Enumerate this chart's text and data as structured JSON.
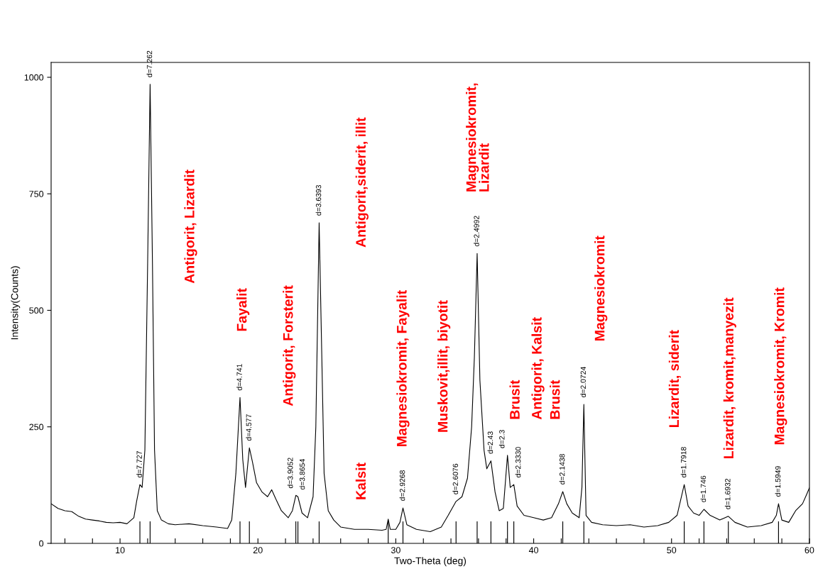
{
  "chart_data": {
    "type": "line",
    "xlabel": "Two-Theta (deg)",
    "ylabel": "Intensity(Counts)",
    "xlim": [
      5,
      60
    ],
    "ylim": [
      0,
      1032
    ],
    "xticks": [
      {
        "value": 6,
        "label": null
      },
      {
        "value": 8,
        "label": null
      },
      10,
      {
        "value": 12,
        "label": null
      },
      {
        "value": 14,
        "label": null
      },
      {
        "value": 16,
        "label": null
      },
      {
        "value": 18,
        "label": null
      },
      20,
      {
        "value": 22,
        "label": null
      },
      {
        "value": 24,
        "label": null
      },
      {
        "value": 26,
        "label": null
      },
      {
        "value": 28,
        "label": null
      },
      30,
      {
        "value": 32,
        "label": null
      },
      {
        "value": 34,
        "label": null
      },
      {
        "value": 36,
        "label": null
      },
      {
        "value": 38,
        "label": null
      },
      40,
      {
        "value": 42,
        "label": null
      },
      {
        "value": 44,
        "label": null
      },
      {
        "value": 46,
        "label": null
      },
      {
        "value": 48,
        "label": null
      },
      50,
      {
        "value": 52,
        "label": null
      },
      {
        "value": 54,
        "label": null
      },
      {
        "value": 56,
        "label": null
      },
      {
        "value": 58,
        "label": null
      },
      60
    ],
    "yticks": [
      0,
      250,
      500,
      750,
      1000
    ],
    "grid": false,
    "series": [
      {
        "color": "#000000",
        "x": [
          5.0,
          5.5,
          6.0,
          6.5,
          7.0,
          7.5,
          8.0,
          8.5,
          9.0,
          9.5,
          10.0,
          10.5,
          11.0,
          11.2,
          11.44,
          11.6,
          11.8,
          12.0,
          12.18,
          12.35,
          12.5,
          12.7,
          13.0,
          13.5,
          14.0,
          15.0,
          16.0,
          17.0,
          17.8,
          18.1,
          18.4,
          18.7,
          18.9,
          19.1,
          19.38,
          19.6,
          19.9,
          20.3,
          20.7,
          21.0,
          21.3,
          21.7,
          22.2,
          22.5,
          22.75,
          22.9,
          23.2,
          23.6,
          24.0,
          24.2,
          24.44,
          24.6,
          24.8,
          25.1,
          25.5,
          26.0,
          27.0,
          28.0,
          29.0,
          29.3,
          29.45,
          29.6,
          30.0,
          30.3,
          30.52,
          30.8,
          31.5,
          32.5,
          33.3,
          33.8,
          34.37,
          34.8,
          35.2,
          35.5,
          35.7,
          35.9,
          36.1,
          36.4,
          36.6,
          36.9,
          37.2,
          37.5,
          37.8,
          38.1,
          38.3,
          38.56,
          38.8,
          39.3,
          40.0,
          40.7,
          41.3,
          41.8,
          42.11,
          42.4,
          42.8,
          43.3,
          43.5,
          43.64,
          43.8,
          44.2,
          45.0,
          46.0,
          47.0,
          48.0,
          49.0,
          49.8,
          50.4,
          50.92,
          51.2,
          51.6,
          52.0,
          52.35,
          52.8,
          53.5,
          54.12,
          54.6,
          55.5,
          56.5,
          57.3,
          57.6,
          57.76,
          58.0,
          58.5,
          59.0,
          59.5,
          59.8,
          60.0
        ],
        "values": [
          85,
          75,
          70,
          68,
          58,
          52,
          50,
          48,
          45,
          44,
          45,
          42,
          55,
          90,
          126,
          120,
          200,
          600,
          985,
          600,
          200,
          70,
          50,
          42,
          40,
          42,
          38,
          35,
          32,
          50,
          150,
          313,
          180,
          120,
          205,
          175,
          130,
          110,
          100,
          115,
          95,
          70,
          55,
          70,
          103,
          100,
          65,
          55,
          100,
          250,
          688,
          450,
          150,
          70,
          50,
          35,
          30,
          30,
          28,
          30,
          52,
          30,
          30,
          45,
          76,
          40,
          30,
          25,
          35,
          60,
          90,
          100,
          140,
          250,
          400,
          622,
          350,
          200,
          160,
          177,
          110,
          70,
          75,
          189,
          120,
          126,
          80,
          60,
          55,
          50,
          55,
          85,
          111,
          85,
          65,
          55,
          120,
          298,
          60,
          45,
          40,
          38,
          40,
          35,
          38,
          45,
          60,
          126,
          80,
          65,
          60,
          73,
          60,
          50,
          58,
          45,
          35,
          38,
          45,
          60,
          85,
          50,
          45,
          70,
          85,
          105,
          119
        ]
      },
      {
        "type": "bar",
        "color": "#000000",
        "x": [
          11.44,
          12.18,
          18.7,
          19.38,
          22.75,
          22.9,
          24.44,
          29.45,
          30.52,
          34.37,
          35.9,
          36.9,
          38.1,
          38.56,
          42.11,
          43.64,
          50.92,
          52.35,
          54.12,
          57.76
        ],
        "values": [
          47,
          47,
          47,
          47,
          47,
          47,
          47,
          47,
          47,
          47,
          47,
          47,
          47,
          47,
          47,
          47,
          47,
          47,
          47,
          47
        ]
      }
    ],
    "annotations": [
      {
        "text": "d=7.727",
        "x": 11.44,
        "y": 126
      },
      {
        "text": "d=7.262",
        "x": 12.18,
        "y": 985
      },
      {
        "text": "d=4.741",
        "x": 18.7,
        "y": 313
      },
      {
        "text": "d=4.577",
        "x": 19.38,
        "y": 205
      },
      {
        "text": "d=3.9052",
        "x": 22.75,
        "y": 103
      },
      {
        "text": "d=3.8654",
        "x": 22.9,
        "y": 100
      },
      {
        "text": "d=3.6393",
        "x": 24.44,
        "y": 688
      },
      {
        "text": "d=2.9268",
        "x": 30.52,
        "y": 76
      },
      {
        "text": "d=2.6076",
        "x": 34.37,
        "y": 90
      },
      {
        "text": "d=2.4992",
        "x": 35.9,
        "y": 622
      },
      {
        "text": "d=2.43",
        "x": 36.9,
        "y": 177
      },
      {
        "text": "d=2.3",
        "x": 38.1,
        "y": 189
      },
      {
        "text": "d=2.3330",
        "x": 38.56,
        "y": 126
      },
      {
        "text": "d=2.1438",
        "x": 42.11,
        "y": 111
      },
      {
        "text": "d=2.0724",
        "x": 43.64,
        "y": 298
      },
      {
        "text": "d=1.7918",
        "x": 50.92,
        "y": 126
      },
      {
        "text": "d=1.746",
        "x": 52.35,
        "y": 73
      },
      {
        "text": "d=1.6932",
        "x": 54.12,
        "y": 58
      },
      {
        "text": "d=1.5949",
        "x": 57.76,
        "y": 85
      },
      "Antigorit, Lizardit",
      "Fayalit",
      "Antigorit, Forsterit",
      "Antigorit,siderit, illit",
      "Kalsit",
      "Magnesiokromit, Fayalit",
      "Muskovit,illit, biyotit",
      "Magnesiokromit,\nLizardit",
      "Brusit",
      "Antigorit, Kalsit",
      "Brusit",
      "Magnesiokromit",
      "Lizardit, siderit",
      "Lizardit, kromit,manyezit",
      "Magnesiokromit, Kromit"
    ]
  }
}
